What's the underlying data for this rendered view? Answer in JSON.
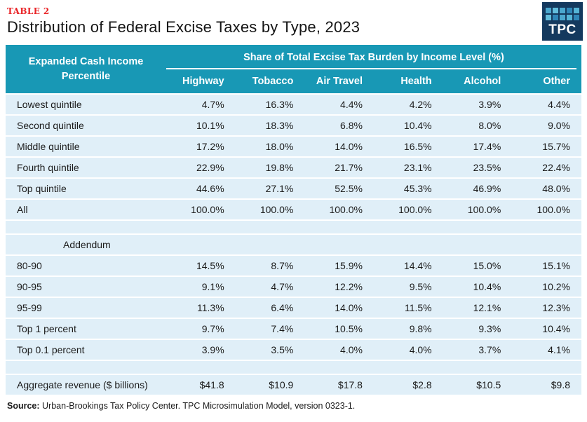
{
  "eyebrow": "TABLE 2",
  "logo": {
    "text": "TPC",
    "squares": [
      "#4ba7ce",
      "#63bedd",
      "#4ba7ce",
      "#2f86b8",
      "#55b4d6",
      "#63bedd",
      "#2f86b8",
      "#4ba7ce",
      "#55b4d6",
      "#2f86b8"
    ]
  },
  "colors": {
    "header_teal": "#1898b5",
    "row_blue": "#e0eff8",
    "accent_red": "#e92427",
    "logo_navy": "#14395e",
    "text_dark": "#1c1c1c"
  },
  "source": {
    "label": "Source:",
    "text": " Urban-Brookings Tax Policy Center. TPC Microsimulation Model, version 0323-1."
  },
  "chart_data": {
    "type": "table",
    "table_number": "TABLE 2",
    "title": "Distribution of Federal Excise Taxes by Type, 2023",
    "row_header": "Expanded Cash Income Percentile",
    "column_group_header": "Share of Total Excise Tax Burden by Income Level (%)",
    "columns": [
      "Highway",
      "Tobacco",
      "Air Travel",
      "Health",
      "Alcohol",
      "Other"
    ],
    "rows": [
      {
        "label": "Lowest quintile",
        "values": [
          "4.7%",
          "16.3%",
          "4.4%",
          "4.2%",
          "3.9%",
          "4.4%"
        ]
      },
      {
        "label": "Second quintile",
        "values": [
          "10.1%",
          "18.3%",
          "6.8%",
          "10.4%",
          "8.0%",
          "9.0%"
        ]
      },
      {
        "label": "Middle quintile",
        "values": [
          "17.2%",
          "18.0%",
          "14.0%",
          "16.5%",
          "17.4%",
          "15.7%"
        ]
      },
      {
        "label": "Fourth quintile",
        "values": [
          "22.9%",
          "19.8%",
          "21.7%",
          "23.1%",
          "23.5%",
          "22.4%"
        ]
      },
      {
        "label": "Top quintile",
        "values": [
          "44.6%",
          "27.1%",
          "52.5%",
          "45.3%",
          "46.9%",
          "48.0%"
        ]
      },
      {
        "label": "All",
        "values": [
          "100.0%",
          "100.0%",
          "100.0%",
          "100.0%",
          "100.0%",
          "100.0%"
        ]
      },
      {
        "type": "spacer"
      },
      {
        "type": "section",
        "label": "Addendum",
        "values": [
          "",
          "",
          "",
          "",
          "",
          ""
        ]
      },
      {
        "label": "80-90",
        "values": [
          "14.5%",
          "8.7%",
          "15.9%",
          "14.4%",
          "15.0%",
          "15.1%"
        ]
      },
      {
        "label": "90-95",
        "values": [
          "9.1%",
          "4.7%",
          "12.2%",
          "9.5%",
          "10.4%",
          "10.2%"
        ]
      },
      {
        "label": "95-99",
        "values": [
          "11.3%",
          "6.4%",
          "14.0%",
          "11.5%",
          "12.1%",
          "12.3%"
        ]
      },
      {
        "label": "Top 1 percent",
        "values": [
          "9.7%",
          "7.4%",
          "10.5%",
          "9.8%",
          "9.3%",
          "10.4%"
        ]
      },
      {
        "label": "Top 0.1 percent",
        "values": [
          "3.9%",
          "3.5%",
          "4.0%",
          "4.0%",
          "3.7%",
          "4.1%"
        ]
      },
      {
        "type": "spacer"
      },
      {
        "label": "Aggregate revenue ($ billions)",
        "values": [
          "$41.8",
          "$10.9",
          "$17.8",
          "$2.8",
          "$10.5",
          "$9.8"
        ]
      }
    ],
    "source": "Source: Urban-Brookings Tax Policy Center. TPC Microsimulation Model, version 0323-1.",
    "legend_position": "none",
    "grid": false
  }
}
